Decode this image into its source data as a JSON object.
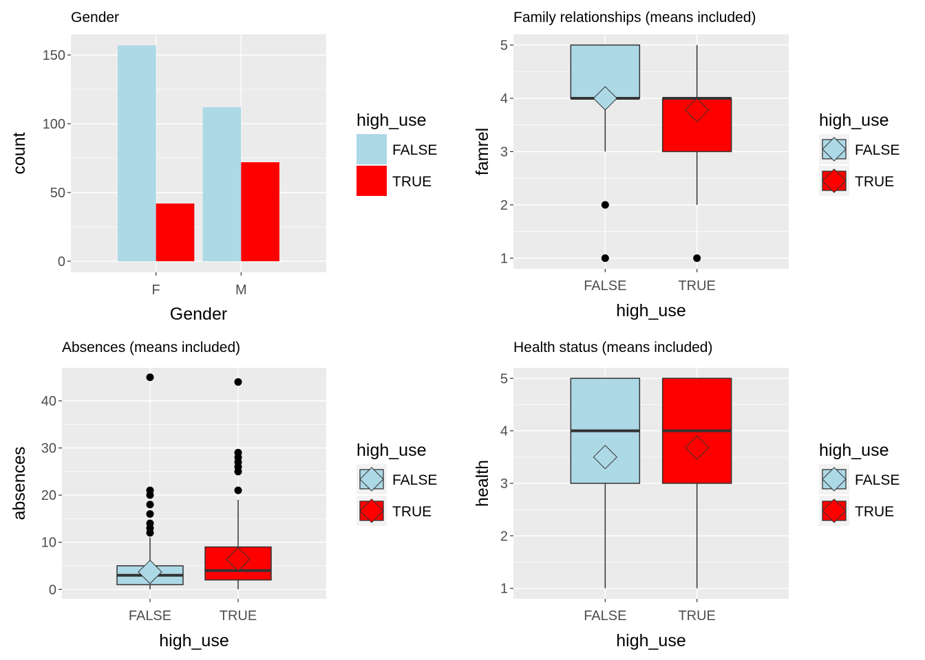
{
  "chart_data": [
    {
      "type": "bar",
      "title": "Gender",
      "xlabel": "Gender",
      "ylabel": "count",
      "categories": [
        "F",
        "M"
      ],
      "y_ticks": [
        0,
        50,
        100,
        150
      ],
      "ylim": [
        -8,
        165
      ],
      "grid": true,
      "legend": {
        "title": "high_use",
        "position": "right"
      },
      "series": [
        {
          "name": "FALSE",
          "color": "#add8e6",
          "values": [
            157,
            112
          ]
        },
        {
          "name": "TRUE",
          "color": "#ff0000",
          "values": [
            42,
            72
          ]
        }
      ]
    },
    {
      "type": "box",
      "title": "Family relationships (means included)",
      "xlabel": "high_use",
      "ylabel": "famrel",
      "categories": [
        "FALSE",
        "TRUE"
      ],
      "y_ticks": [
        1,
        2,
        3,
        4,
        5
      ],
      "ylim": [
        0.8,
        5.2
      ],
      "grid": true,
      "legend": {
        "title": "high_use",
        "position": "right"
      },
      "series": [
        {
          "name": "FALSE",
          "color": "#add8e6",
          "q1": 4,
          "median": 4,
          "q3": 5,
          "whisker_low": 3,
          "whisker_high": 5,
          "mean": 4.0,
          "outliers": [
            1,
            2
          ]
        },
        {
          "name": "TRUE",
          "color": "#ff0000",
          "q1": 3,
          "median": 4,
          "q3": 4,
          "whisker_low": 2,
          "whisker_high": 5,
          "mean": 3.78,
          "outliers": [
            1
          ]
        }
      ]
    },
    {
      "type": "box",
      "title": "Absences (means included)",
      "xlabel": "high_use",
      "ylabel": "absences",
      "categories": [
        "FALSE",
        "TRUE"
      ],
      "y_ticks": [
        0,
        10,
        20,
        30,
        40
      ],
      "ylim": [
        -2,
        47
      ],
      "grid": true,
      "legend": {
        "title": "high_use",
        "position": "right"
      },
      "series": [
        {
          "name": "FALSE",
          "color": "#add8e6",
          "q1": 1,
          "median": 3,
          "q3": 5,
          "whisker_low": 0,
          "whisker_high": 11,
          "mean": 3.7,
          "outliers": [
            12,
            13,
            14,
            16,
            18,
            20,
            21,
            45
          ]
        },
        {
          "name": "TRUE",
          "color": "#ff0000",
          "q1": 2,
          "median": 4,
          "q3": 9,
          "whisker_low": 0,
          "whisker_high": 19,
          "mean": 6.4,
          "outliers": [
            21,
            25,
            26,
            27,
            28,
            29,
            44
          ]
        }
      ]
    },
    {
      "type": "box",
      "title": "Health status (means included)",
      "xlabel": "high_use",
      "ylabel": "health",
      "categories": [
        "FALSE",
        "TRUE"
      ],
      "y_ticks": [
        1,
        2,
        3,
        4,
        5
      ],
      "ylim": [
        0.8,
        5.2
      ],
      "grid": true,
      "legend": {
        "title": "high_use",
        "position": "right"
      },
      "series": [
        {
          "name": "FALSE",
          "color": "#add8e6",
          "q1": 3,
          "median": 4,
          "q3": 5,
          "whisker_low": 1,
          "whisker_high": 5,
          "mean": 3.5,
          "outliers": []
        },
        {
          "name": "TRUE",
          "color": "#ff0000",
          "q1": 3,
          "median": 4,
          "q3": 5,
          "whisker_low": 1,
          "whisker_high": 5,
          "mean": 3.68,
          "outliers": []
        }
      ]
    }
  ],
  "colors": {
    "panel_bg": "#ebebeb",
    "grid": "#ffffff",
    "box_outline": "#333333"
  }
}
